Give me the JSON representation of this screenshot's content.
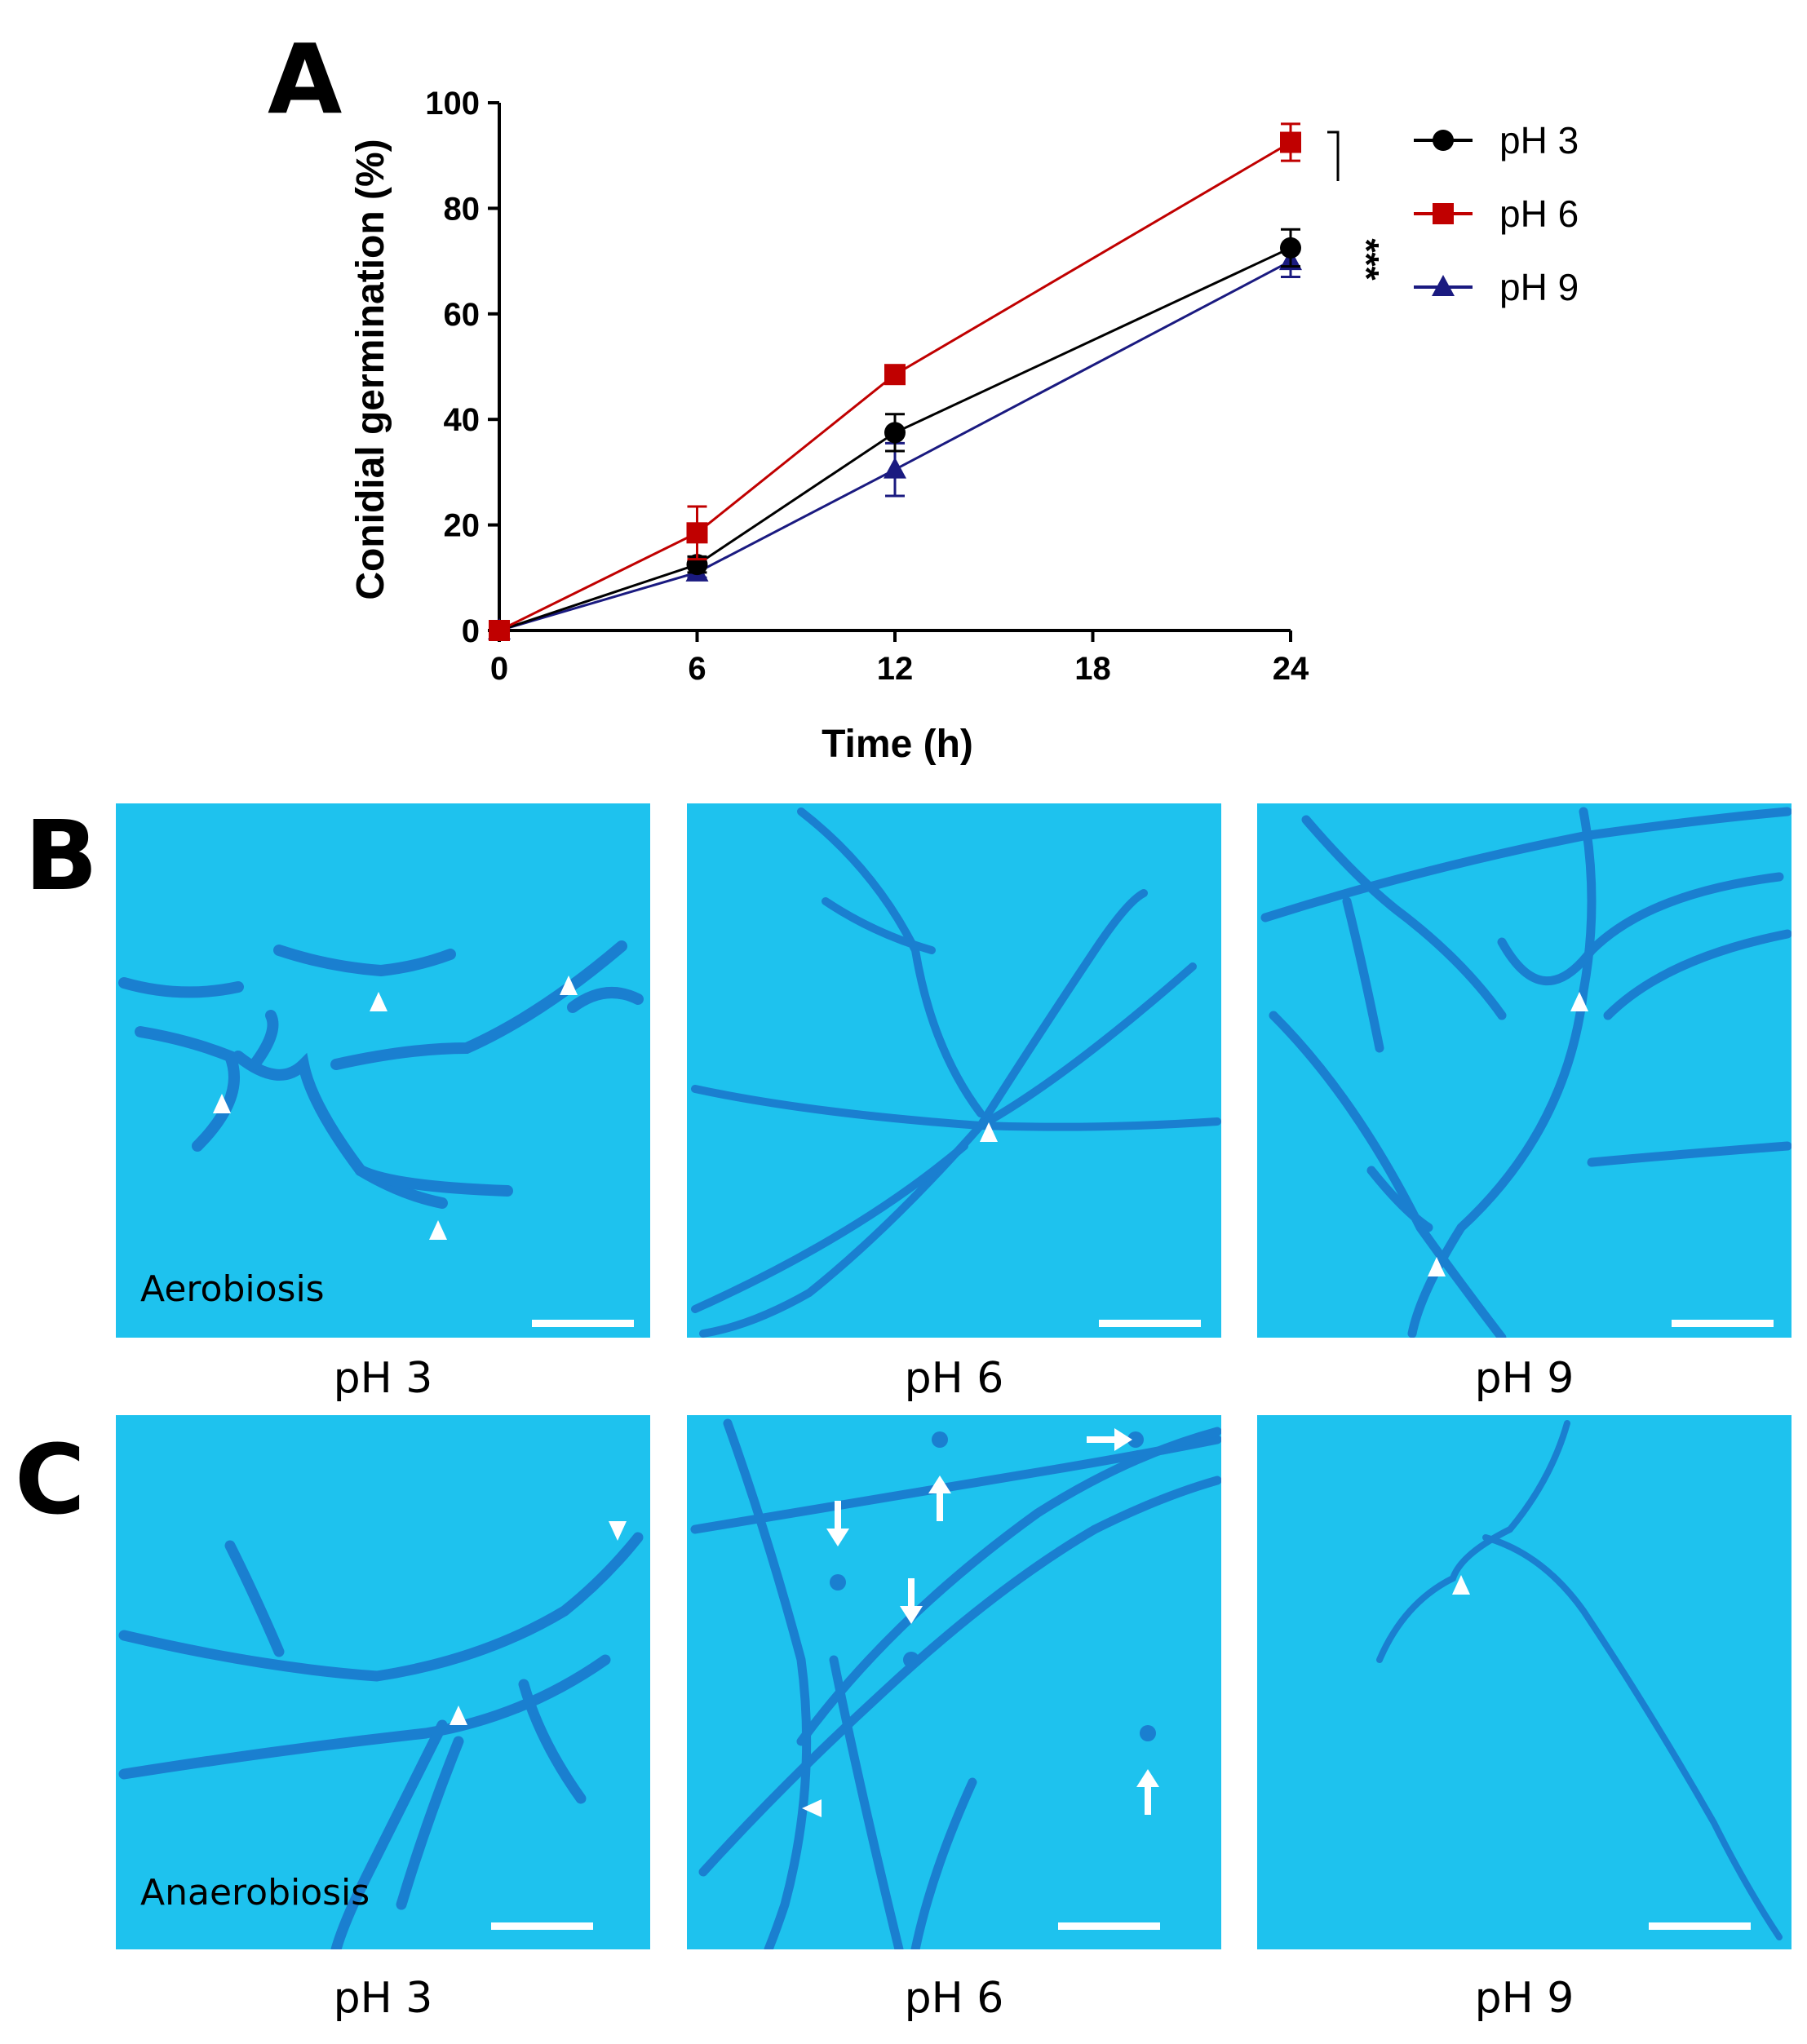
{
  "panels": {
    "a": "A",
    "b": "B",
    "c": "C"
  },
  "chart_data": {
    "type": "line",
    "xlabel": "Time (h)",
    "ylabel": "Conidial germination (%)",
    "x": [
      0,
      6,
      12,
      24
    ],
    "xticks": [
      "0",
      "6",
      "12",
      "18",
      "24"
    ],
    "yticks": [
      "0",
      "20",
      "40",
      "60",
      "80",
      "100"
    ],
    "xlim": [
      0,
      24
    ],
    "ylim": [
      0,
      100
    ],
    "legend_position": "top-right",
    "significance": "***",
    "series": [
      {
        "name": "pH 3",
        "color": "#000000",
        "marker": "circle",
        "values": [
          0,
          12.5,
          37.5,
          72.5
        ],
        "errors": [
          0,
          1.5,
          3.5,
          3.5
        ]
      },
      {
        "name": "pH 6",
        "color": "#c00000",
        "marker": "square",
        "values": [
          0,
          18.5,
          48.5,
          92.5
        ],
        "errors": [
          0,
          5,
          1.5,
          3.5
        ]
      },
      {
        "name": "pH 9",
        "color": "#1a1a80",
        "marker": "triangle",
        "values": [
          0,
          11,
          30.5,
          70
        ],
        "errors": [
          0,
          1,
          5,
          3
        ]
      }
    ]
  },
  "micrographs": {
    "aerobiosis_label": "Aerobiosis",
    "anaerobiosis_label": "Anaerobiosis",
    "captions_b": [
      "pH 3",
      "pH 6",
      "pH 9"
    ],
    "captions_c": [
      "pH 3",
      "pH 6",
      "pH 9"
    ]
  },
  "colors": {
    "micro_bg": "#1ec2ee",
    "hyphae": "#1a7fd0"
  }
}
